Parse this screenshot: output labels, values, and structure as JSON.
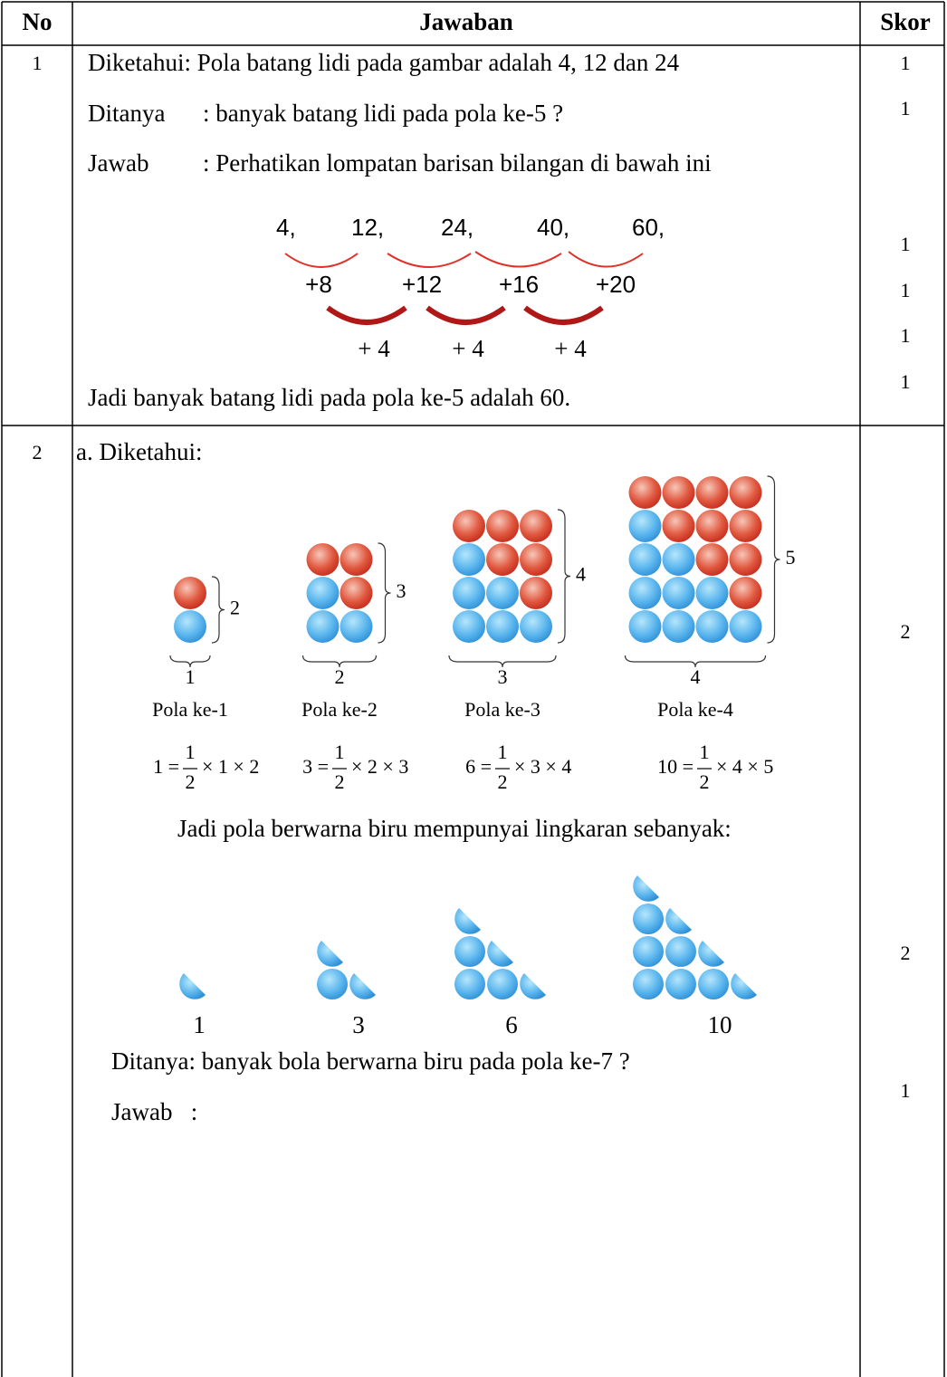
{
  "header": {
    "no": "No",
    "answer": "Jawaban",
    "score": "Skor"
  },
  "rows": [
    {
      "no": "1",
      "known": "Diketahui: Pola batang lidi pada gambar adalah 4, 12 dan 24",
      "asked_label": "Ditanya",
      "asked": ": banyak batang lidi pada pola ke-5 ?",
      "answer_label": "Jawab",
      "answer": ": Perhatikan lompatan barisan bilangan di bawah ini",
      "sequence": [
        "4,",
        "12,",
        "24,",
        "40,",
        "60,"
      ],
      "first_differences": [
        "+8",
        "+12",
        "+16",
        "+20"
      ],
      "second_differences": [
        "+ 4",
        "+ 4",
        "+ 4"
      ],
      "conclusion": "Jadi banyak batang lidi pada pola ke-5 adalah 60.",
      "scores": [
        "1",
        "1",
        "1",
        "1",
        "1",
        "1"
      ]
    },
    {
      "no": "2",
      "known": "a. Diketahui:",
      "patterns": [
        {
          "height": "2",
          "width": "1",
          "label": "Pola ke-1",
          "formula": {
            "lhs": "1 =",
            "numerator": "1",
            "denominator": "2",
            "rest": "× 1 × 2"
          }
        },
        {
          "height": "3",
          "width": "2",
          "label": "Pola ke-2",
          "formula": {
            "lhs": "3 =",
            "numerator": "1",
            "denominator": "2",
            "rest": "× 2 × 3"
          }
        },
        {
          "height": "4",
          "width": "3",
          "label": "Pola ke-3",
          "formula": {
            "lhs": "6 =",
            "numerator": "1",
            "denominator": "2",
            "rest": "× 3 × 4"
          }
        },
        {
          "height": "5",
          "width": "4",
          "label": "Pola ke-4",
          "formula": {
            "lhs": "10 =",
            "numerator": "1",
            "denominator": "2",
            "rest": "× 4 × 5"
          }
        }
      ],
      "blue_intro": "Jadi pola berwarna biru mempunyai lingkaran sebanyak:",
      "blue_counts": [
        "1",
        "3",
        "6",
        "10"
      ],
      "asked": "Ditanya: banyak bola berwarna biru pada pola ke-7 ?",
      "answer": "Jawab   :",
      "scores": [
        "2",
        "2",
        "1"
      ]
    }
  ]
}
